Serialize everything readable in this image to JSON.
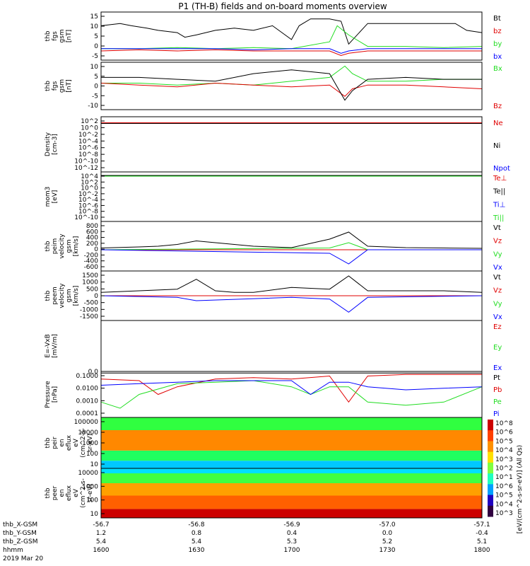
{
  "title": "P1 (TH-B) fields and on-board moments overview",
  "colors": {
    "black": "#000000",
    "red": "#e00000",
    "green": "#22dd22",
    "blue": "#0000ff"
  },
  "chart_data": [
    {
      "type": "line",
      "id": "fgs",
      "ylabel": [
        "thb",
        "fgs",
        "gsm",
        "[nT]"
      ],
      "yticks": [
        "15",
        "10",
        "5",
        "0",
        "-5"
      ],
      "ylim": [
        -5,
        16
      ],
      "legend": [
        {
          "text": "Bt",
          "color": "#000000"
        },
        {
          "text": "bz",
          "color": "#e00000"
        },
        {
          "text": "by",
          "color": "#22dd22"
        },
        {
          "text": "bx",
          "color": "#0000ff"
        }
      ],
      "series": [
        {
          "name": "Bt",
          "color": "#000000",
          "x": [
            0,
            0.05,
            0.08,
            0.12,
            0.15,
            0.2,
            0.22,
            0.25,
            0.3,
            0.35,
            0.4,
            0.45,
            0.5,
            0.52,
            0.55,
            0.6,
            0.63,
            0.65,
            0.7,
            0.75,
            0.8,
            0.85,
            0.9,
            0.93,
            0.96,
            1
          ],
          "y": [
            10,
            11,
            10,
            9,
            8,
            7,
            5,
            6,
            8,
            9,
            8,
            10,
            4,
            10,
            13,
            13,
            12,
            2,
            11,
            11,
            11,
            11,
            11,
            11,
            8,
            7
          ]
        },
        {
          "name": "bz",
          "color": "#e00000",
          "x": [
            0,
            0.1,
            0.2,
            0.3,
            0.4,
            0.5,
            0.6,
            0.63,
            0.65,
            0.7,
            0.8,
            0.9,
            1
          ],
          "y": [
            -1,
            -0.5,
            -1,
            -0.5,
            -1,
            -1,
            -1,
            -3,
            -2,
            -1,
            -1,
            -1,
            -1
          ]
        },
        {
          "name": "by",
          "color": "#22dd22",
          "x": [
            0,
            0.1,
            0.2,
            0.3,
            0.4,
            0.5,
            0.6,
            0.62,
            0.65,
            0.7,
            0.8,
            0.9,
            1
          ],
          "y": [
            0,
            0,
            0.5,
            0,
            0.5,
            0,
            3,
            10,
            6,
            1,
            1,
            0.5,
            1
          ]
        },
        {
          "name": "bx",
          "color": "#0000ff",
          "x": [
            0,
            0.1,
            0.2,
            0.3,
            0.4,
            0.5,
            0.6,
            0.63,
            0.65,
            0.7,
            1
          ],
          "y": [
            0,
            0,
            0,
            0,
            -0.5,
            0,
            0,
            -2,
            -1,
            0,
            0
          ]
        }
      ]
    },
    {
      "type": "line",
      "id": "fgs-b",
      "ylabel": [
        "thb",
        "fgs",
        "gsm",
        "[nT]"
      ],
      "yticks": [
        "10",
        "5",
        "0",
        "-5",
        "-10"
      ],
      "ylim": [
        -15,
        10
      ],
      "legend": [
        {
          "text": "Bx",
          "color": "#22dd22"
        },
        {
          "text": "Bz",
          "color": "#e00000"
        }
      ],
      "series": [
        {
          "name": "Bx",
          "color": "#22dd22",
          "x": [
            0,
            0.1,
            0.2,
            0.3,
            0.4,
            0.5,
            0.6,
            0.64,
            0.66,
            0.7,
            0.8,
            0.9,
            1
          ],
          "y": [
            -1,
            -1,
            -2,
            -1,
            -2,
            0,
            2,
            8,
            4,
            0,
            0,
            1,
            1
          ]
        },
        {
          "name": "Bz",
          "color": "#e00000",
          "x": [
            0,
            0.1,
            0.2,
            0.3,
            0.4,
            0.5,
            0.6,
            0.64,
            0.66,
            0.7,
            0.8,
            0.9,
            1
          ],
          "y": [
            -1,
            -2,
            -3,
            -1,
            -2,
            -3,
            -2,
            -8,
            -4,
            -2,
            -2,
            -3,
            -4
          ]
        },
        {
          "name": "Bt",
          "color": "#000000",
          "x": [
            0,
            0.1,
            0.2,
            0.3,
            0.4,
            0.5,
            0.55,
            0.6,
            0.64,
            0.66,
            0.7,
            0.8,
            0.9,
            1
          ],
          "y": [
            2,
            2,
            1,
            0,
            4,
            6,
            5,
            4,
            -10,
            -5,
            1,
            2,
            1,
            1
          ]
        }
      ]
    },
    {
      "type": "line",
      "id": "density",
      "ylabel": [
        "Density",
        "[cm-3]"
      ],
      "yticks": [
        "10^2",
        "10^0",
        "10^-2",
        "10^-4",
        "10^-6",
        "10^-8",
        "10^-10",
        "10^-12"
      ],
      "ylim": [
        -12,
        2
      ],
      "legend": [
        {
          "text": "Ne",
          "color": "#e00000"
        },
        {
          "text": "Ni",
          "color": "#000000"
        },
        {
          "text": "Npot",
          "color": "#0000ff"
        }
      ],
      "series": [
        {
          "name": "Ne",
          "color": "#e00000",
          "x": [
            0,
            1
          ],
          "y": [
            0.5,
            0.5
          ]
        },
        {
          "name": "Ni",
          "color": "#000000",
          "x": [
            0,
            1
          ],
          "y": [
            0.3,
            0.3
          ]
        }
      ]
    },
    {
      "type": "line",
      "id": "temp",
      "ylabel": [
        "mom3",
        "[eV]"
      ],
      "yticks": [
        "10^4",
        "10^2",
        "10^0",
        "10^-2",
        "10^-4",
        "10^-6",
        "10^-8",
        "10^-10"
      ],
      "ylim": [
        -10,
        4
      ],
      "legend": [
        {
          "text": "Te⊥",
          "color": "#e00000"
        },
        {
          "text": "Te||",
          "color": "#000000"
        },
        {
          "text": "Ti⊥",
          "color": "#0000ff"
        },
        {
          "text": "Ti||",
          "color": "#22dd22"
        }
      ],
      "series": [
        {
          "name": "Te||",
          "color": "#000000",
          "x": [
            0,
            1
          ],
          "y": [
            3,
            3
          ]
        },
        {
          "name": "Ti||",
          "color": "#22dd22",
          "x": [
            0,
            1
          ],
          "y": [
            2.8,
            2.8
          ]
        }
      ]
    },
    {
      "type": "line",
      "id": "peim",
      "ylabel": [
        "thb",
        "peim",
        "velocity",
        "gsm",
        "[km/s]"
      ],
      "yticks": [
        "800",
        "600",
        "400",
        "200",
        "0",
        "-200",
        "-400",
        "-600"
      ],
      "ylim": [
        -600,
        800
      ],
      "legend": [
        {
          "text": "Vt",
          "color": "#000000"
        },
        {
          "text": "Vz",
          "color": "#e00000"
        },
        {
          "text": "Vy",
          "color": "#22dd22"
        },
        {
          "text": "Vx",
          "color": "#0000ff"
        }
      ],
      "series": [
        {
          "name": "Vt",
          "color": "#000000",
          "x": [
            0,
            0.1,
            0.15,
            0.2,
            0.25,
            0.3,
            0.35,
            0.4,
            0.5,
            0.6,
            0.65,
            0.7,
            0.8,
            0.9,
            1
          ],
          "y": [
            50,
            80,
            100,
            150,
            250,
            200,
            150,
            100,
            60,
            300,
            500,
            100,
            60,
            50,
            40
          ]
        },
        {
          "name": "Vz",
          "color": "#e00000",
          "x": [
            0,
            1
          ],
          "y": [
            0,
            0
          ]
        },
        {
          "name": "Vy",
          "color": "#22dd22",
          "x": [
            0,
            0.6,
            0.65,
            0.7,
            1
          ],
          "y": [
            0,
            50,
            200,
            0,
            0
          ]
        },
        {
          "name": "Vx",
          "color": "#0000ff",
          "x": [
            0,
            0.6,
            0.65,
            0.7,
            1
          ],
          "y": [
            0,
            -100,
            -400,
            0,
            0
          ]
        }
      ]
    },
    {
      "type": "line",
      "id": "peem",
      "ylabel": [
        "thb",
        "peem",
        "velocity",
        "gsm",
        "[km/s]"
      ],
      "yticks": [
        "1500",
        "1000",
        "500",
        "0",
        "-500",
        "-1000",
        "-1500"
      ],
      "ylim": [
        -1500,
        1500
      ],
      "legend": [
        {
          "text": "Vt",
          "color": "#000000"
        },
        {
          "text": "Vz",
          "color": "#e00000"
        },
        {
          "text": "Vy",
          "color": "#22dd22"
        },
        {
          "text": "Vx",
          "color": "#0000ff"
        }
      ],
      "series": [
        {
          "name": "Vt",
          "color": "#000000",
          "x": [
            0,
            0.2,
            0.25,
            0.3,
            0.35,
            0.4,
            0.5,
            0.6,
            0.65,
            0.7,
            0.8,
            0.9,
            1
          ],
          "y": [
            200,
            400,
            1000,
            300,
            200,
            200,
            500,
            400,
            1200,
            300,
            300,
            300,
            200
          ]
        },
        {
          "name": "Vz",
          "color": "#e00000",
          "x": [
            0,
            1
          ],
          "y": [
            0,
            0
          ]
        },
        {
          "name": "Vx",
          "color": "#0000ff",
          "x": [
            0,
            0.2,
            0.25,
            0.5,
            0.6,
            0.65,
            0.7,
            1
          ],
          "y": [
            0,
            -100,
            -300,
            -100,
            -200,
            -1000,
            -100,
            0
          ]
        }
      ]
    },
    {
      "type": "line",
      "id": "efield",
      "ylabel": [
        "E=-VxB",
        "[mV/m]"
      ],
      "yticks": [
        "0.0"
      ],
      "ylim": [
        0,
        1
      ],
      "legend": [
        {
          "text": "Ez",
          "color": "#e00000"
        },
        {
          "text": "Ey",
          "color": "#22dd22"
        },
        {
          "text": "Ex",
          "color": "#0000ff"
        }
      ],
      "series": []
    },
    {
      "type": "line",
      "id": "pressure",
      "ylabel": [
        "Pressure",
        "[nPa]"
      ],
      "yticks": [
        "0.1000",
        "0.0100",
        "0.0010",
        "0.0001"
      ],
      "ylim": [
        -4,
        -1
      ],
      "legend": [
        {
          "text": "Pt",
          "color": "#000000"
        },
        {
          "text": "Pb",
          "color": "#e00000"
        },
        {
          "text": "Pe",
          "color": "#22dd22"
        },
        {
          "text": "Pi",
          "color": "#0000ff"
        }
      ],
      "series": [
        {
          "name": "Pt",
          "color": "#000000",
          "x": [
            0,
            0.5,
            1
          ],
          "y": [
            -1.1,
            -1.1,
            -1.1
          ]
        },
        {
          "name": "Pb",
          "color": "#e00000",
          "x": [
            0,
            0.1,
            0.15,
            0.2,
            0.3,
            0.4,
            0.5,
            0.6,
            0.65,
            0.7,
            0.8,
            0.9,
            1
          ],
          "y": [
            -1.5,
            -1.6,
            -2.5,
            -2,
            -1.5,
            -1.4,
            -1.5,
            -1.3,
            -3,
            -1.3,
            -1.2,
            -1.2,
            -1.2
          ]
        },
        {
          "name": "Pe",
          "color": "#22dd22",
          "x": [
            0,
            0.05,
            0.1,
            0.2,
            0.3,
            0.4,
            0.5,
            0.55,
            0.6,
            0.65,
            0.7,
            0.8,
            0.9,
            1
          ],
          "y": [
            -3,
            -3.4,
            -2.5,
            -1.8,
            -1.7,
            -1.6,
            -2,
            -2.5,
            -2,
            -2,
            -3,
            -3.2,
            -3,
            -2
          ]
        },
        {
          "name": "Pi",
          "color": "#0000ff",
          "x": [
            0,
            0.1,
            0.2,
            0.3,
            0.4,
            0.5,
            0.55,
            0.6,
            0.65,
            0.7,
            0.8,
            0.9,
            1
          ],
          "y": [
            -1.9,
            -1.8,
            -1.7,
            -1.6,
            -1.6,
            -1.6,
            -2.5,
            -1.7,
            -1.7,
            -2,
            -2.2,
            -2.1,
            -2
          ]
        }
      ]
    },
    {
      "type": "heatmap",
      "id": "peir",
      "ylabel": [
        "thb",
        "peir",
        "en",
        "eflux",
        "eV",
        "(cm^2-s-",
        "sr-eV)"
      ],
      "yticks": [
        "100000",
        "10000",
        "1000",
        "100",
        "10"
      ],
      "ylim": [
        1,
        5
      ]
    },
    {
      "type": "heatmap",
      "id": "peer",
      "ylabel": [
        "thb",
        "peer",
        "en",
        "eflux",
        "eV",
        "(cm^2-s-",
        "sr-eV)"
      ],
      "yticks": [
        "10000",
        "1000",
        "100",
        "10"
      ],
      "ylim": [
        1,
        4.3
      ]
    }
  ],
  "colorbar": {
    "ticks": [
      "10^8",
      "10^6",
      "10^5",
      "10^4",
      "10^3",
      "10^2",
      "10^1",
      "10^6",
      "10^5",
      "10^4",
      "10^3"
    ],
    "label": "[eV/(cm^2-s-sr-eV)] (All Qs)"
  },
  "time_axis": {
    "rows": [
      {
        "label": "thb_X-GSM",
        "values": [
          "-56.7",
          "-56.8",
          "-56.9",
          "-57.0",
          "-57.1"
        ]
      },
      {
        "label": "thb_Y-GSM",
        "values": [
          "1.2",
          "0.8",
          "0.4",
          "0.0",
          "-0.4"
        ]
      },
      {
        "label": "thb_Z-GSM",
        "values": [
          "5.4",
          "5.4",
          "5.3",
          "5.2",
          "5.1"
        ]
      },
      {
        "label": "hhmm",
        "values": [
          "1600",
          "1630",
          "1700",
          "1730",
          "1800"
        ]
      }
    ],
    "date": "2019 Mar 20"
  }
}
